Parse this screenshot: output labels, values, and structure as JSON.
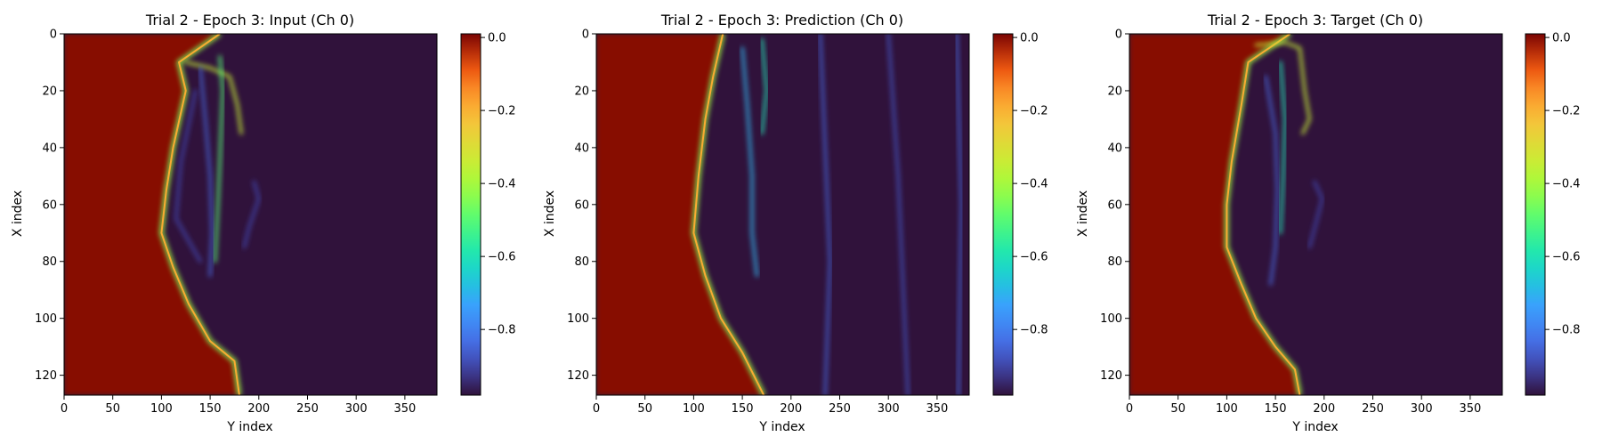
{
  "chart_data": [
    {
      "type": "heatmap",
      "title": "Trial 2 - Epoch 3: Input (Ch 0)",
      "xlabel": "Y index",
      "ylabel": "X index",
      "xlim": [
        0,
        383
      ],
      "ylim": [
        127,
        0
      ],
      "x_ticks": [
        0,
        50,
        100,
        150,
        200,
        250,
        300,
        350
      ],
      "y_ticks": [
        0,
        20,
        40,
        60,
        80,
        100,
        120
      ],
      "colorbar": {
        "cmap": "turbo",
        "range": [
          -0.98,
          0.01
        ],
        "ticks": [
          0.0,
          -0.2,
          -0.4,
          -0.6,
          -0.8
        ],
        "tick_labels": [
          "0.0",
          "−0.2",
          "−0.4",
          "−0.6",
          "−0.8"
        ]
      },
      "field": {
        "background_value": -0.98,
        "left_region_value": 0.0,
        "front_x_by_row": [
          [
            0,
            160
          ],
          [
            10,
            118
          ],
          [
            20,
            125
          ],
          [
            40,
            112
          ],
          [
            55,
            105
          ],
          [
            70,
            100
          ],
          [
            82,
            112
          ],
          [
            95,
            128
          ],
          [
            108,
            150
          ],
          [
            115,
            175
          ],
          [
            127,
            180
          ]
        ],
        "filaments": [
          {
            "points": [
              [
                10,
                125
              ],
              [
                12,
                150
              ],
              [
                15,
                170
              ],
              [
                25,
                178
              ],
              [
                35,
                182
              ]
            ],
            "value": -0.35
          },
          {
            "points": [
              [
                12,
                140
              ],
              [
                30,
                145
              ],
              [
                50,
                150
              ],
              [
                70,
                152
              ],
              [
                85,
                150
              ]
            ],
            "value": -0.85
          },
          {
            "points": [
              [
                20,
                135
              ],
              [
                45,
                120
              ],
              [
                65,
                115
              ],
              [
                80,
                140
              ]
            ],
            "value": -0.9
          },
          {
            "points": [
              [
                8,
                160
              ],
              [
                20,
                163
              ],
              [
                45,
                160
              ],
              [
                60,
                158
              ],
              [
                80,
                155
              ]
            ],
            "value": -0.5
          },
          {
            "points": [
              [
                52,
                195
              ],
              [
                58,
                200
              ],
              [
                68,
                190
              ],
              [
                75,
                185
              ]
            ],
            "value": -0.9
          }
        ]
      }
    },
    {
      "type": "heatmap",
      "title": "Trial 2 - Epoch 3: Prediction (Ch 0)",
      "xlabel": "Y index",
      "ylabel": "X index",
      "xlim": [
        0,
        383
      ],
      "ylim": [
        127,
        0
      ],
      "x_ticks": [
        0,
        50,
        100,
        150,
        200,
        250,
        300,
        350
      ],
      "y_ticks": [
        0,
        20,
        40,
        60,
        80,
        100,
        120
      ],
      "colorbar": {
        "cmap": "turbo",
        "range": [
          -0.98,
          0.01
        ],
        "ticks": [
          0.0,
          -0.2,
          -0.4,
          -0.6,
          -0.8
        ],
        "tick_labels": [
          "0.0",
          "−0.2",
          "−0.4",
          "−0.6",
          "−0.8"
        ]
      },
      "field": {
        "background_value": -0.98,
        "left_region_value": 0.0,
        "front_x_by_row": [
          [
            0,
            130
          ],
          [
            15,
            120
          ],
          [
            30,
            112
          ],
          [
            50,
            105
          ],
          [
            70,
            100
          ],
          [
            85,
            112
          ],
          [
            100,
            128
          ],
          [
            112,
            150
          ],
          [
            127,
            172
          ]
        ],
        "filaments": [
          {
            "points": [
              [
                5,
                150
              ],
              [
                25,
                155
              ],
              [
                50,
                160
              ],
              [
                70,
                160
              ],
              [
                85,
                165
              ]
            ],
            "value": -0.7
          },
          {
            "points": [
              [
                2,
                170
              ],
              [
                20,
                175
              ],
              [
                35,
                170
              ]
            ],
            "value": -0.6
          },
          {
            "points": [
              [
                0,
                230
              ],
              [
                40,
                235
              ],
              [
                80,
                240
              ],
              [
                127,
                235
              ]
            ],
            "value": -0.85
          },
          {
            "points": [
              [
                0,
                300
              ],
              [
                50,
                310
              ],
              [
                127,
                320
              ]
            ],
            "value": -0.88
          },
          {
            "points": [
              [
                0,
                370
              ],
              [
                60,
                375
              ],
              [
                127,
                372
              ]
            ],
            "value": -0.85
          }
        ]
      }
    },
    {
      "type": "heatmap",
      "title": "Trial 2 - Epoch 3: Target (Ch 0)",
      "xlabel": "Y index",
      "ylabel": "X index",
      "xlim": [
        0,
        383
      ],
      "ylim": [
        127,
        0
      ],
      "x_ticks": [
        0,
        50,
        100,
        150,
        200,
        250,
        300,
        350
      ],
      "y_ticks": [
        0,
        20,
        40,
        60,
        80,
        100,
        120
      ],
      "colorbar": {
        "cmap": "turbo",
        "range": [
          -0.98,
          0.01
        ],
        "ticks": [
          0.0,
          -0.2,
          -0.4,
          -0.6,
          -0.8
        ],
        "tick_labels": [
          "0.0",
          "−0.2",
          "−0.4",
          "−0.6",
          "−0.8"
        ]
      },
      "field": {
        "background_value": -0.98,
        "left_region_value": 0.0,
        "front_x_by_row": [
          [
            0,
            165
          ],
          [
            10,
            122
          ],
          [
            25,
            115
          ],
          [
            45,
            105
          ],
          [
            60,
            100
          ],
          [
            75,
            100
          ],
          [
            88,
            115
          ],
          [
            100,
            130
          ],
          [
            110,
            150
          ],
          [
            118,
            170
          ],
          [
            127,
            175
          ]
        ],
        "filaments": [
          {
            "points": [
              [
                4,
                130
              ],
              [
                3,
                160
              ],
              [
                5,
                175
              ],
              [
                20,
                180
              ],
              [
                30,
                185
              ],
              [
                35,
                178
              ]
            ],
            "value": -0.35
          },
          {
            "points": [
              [
                15,
                140
              ],
              [
                35,
                150
              ],
              [
                55,
                152
              ],
              [
                75,
                150
              ],
              [
                88,
                145
              ]
            ],
            "value": -0.85
          },
          {
            "points": [
              [
                10,
                155
              ],
              [
                30,
                160
              ],
              [
                50,
                158
              ],
              [
                70,
                155
              ]
            ],
            "value": -0.6
          },
          {
            "points": [
              [
                52,
                190
              ],
              [
                58,
                198
              ],
              [
                66,
                192
              ],
              [
                75,
                185
              ]
            ],
            "value": -0.9
          }
        ]
      }
    }
  ]
}
